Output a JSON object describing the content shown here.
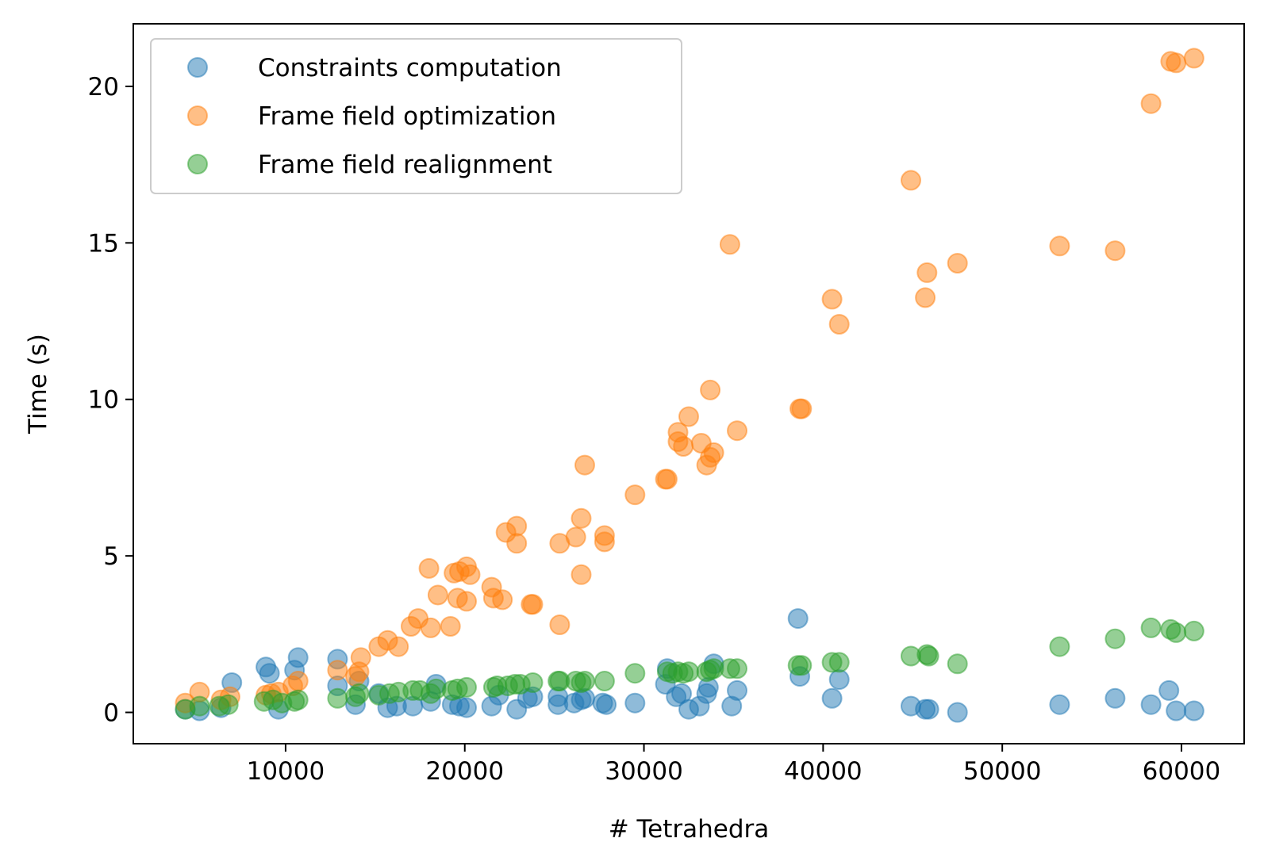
{
  "chart_data": {
    "type": "scatter",
    "title": "",
    "xlabel": "# Tetrahedra",
    "ylabel": "Time (s)",
    "xlim": [
      1500,
      63500
    ],
    "ylim": [
      -1.0,
      22.0
    ],
    "xticks": [
      10000,
      20000,
      30000,
      40000,
      50000,
      60000
    ],
    "yticks": [
      0,
      5,
      10,
      15,
      20
    ],
    "xtick_labels": [
      "10000",
      "20000",
      "30000",
      "40000",
      "50000",
      "60000"
    ],
    "ytick_labels": [
      "0",
      "5",
      "10",
      "15",
      "20"
    ],
    "grid": false,
    "legend_position": "top-left",
    "series": [
      {
        "name": "Constraints computation",
        "color": "#1f77b4",
        "points": [
          [
            4400,
            0.1
          ],
          [
            5200,
            0.05
          ],
          [
            6400,
            0.15
          ],
          [
            7000,
            0.95
          ],
          [
            8900,
            1.45
          ],
          [
            9100,
            1.25
          ],
          [
            9600,
            0.1
          ],
          [
            10500,
            1.35
          ],
          [
            10700,
            1.75
          ],
          [
            12900,
            1.7
          ],
          [
            12900,
            0.85
          ],
          [
            13900,
            0.25
          ],
          [
            14100,
            1.0
          ],
          [
            15200,
            0.6
          ],
          [
            15700,
            0.15
          ],
          [
            16200,
            0.2
          ],
          [
            17100,
            0.2
          ],
          [
            18100,
            0.35
          ],
          [
            18400,
            0.9
          ],
          [
            19300,
            0.25
          ],
          [
            19700,
            0.2
          ],
          [
            20100,
            0.15
          ],
          [
            21500,
            0.2
          ],
          [
            21900,
            0.55
          ],
          [
            22900,
            0.1
          ],
          [
            23500,
            0.45
          ],
          [
            23800,
            0.5
          ],
          [
            25200,
            0.5
          ],
          [
            25200,
            0.25
          ],
          [
            26100,
            0.3
          ],
          [
            26500,
            0.4
          ],
          [
            26700,
            0.45
          ],
          [
            27700,
            0.3
          ],
          [
            27900,
            0.25
          ],
          [
            29500,
            0.3
          ],
          [
            31200,
            0.9
          ],
          [
            31300,
            1.4
          ],
          [
            31800,
            0.5
          ],
          [
            32100,
            0.6
          ],
          [
            32500,
            0.1
          ],
          [
            33100,
            0.2
          ],
          [
            33500,
            0.6
          ],
          [
            33600,
            0.8
          ],
          [
            33900,
            1.55
          ],
          [
            34900,
            0.2
          ],
          [
            35200,
            0.7
          ],
          [
            38600,
            3.0
          ],
          [
            38700,
            1.15
          ],
          [
            40500,
            0.45
          ],
          [
            40900,
            1.05
          ],
          [
            44900,
            0.2
          ],
          [
            45700,
            0.1
          ],
          [
            45900,
            0.1
          ],
          [
            47500,
            0.0
          ],
          [
            53200,
            0.25
          ],
          [
            56300,
            0.45
          ],
          [
            58300,
            0.25
          ],
          [
            59300,
            0.7
          ],
          [
            59700,
            0.05
          ],
          [
            60700,
            0.05
          ]
        ]
      },
      {
        "name": "Frame field optimization",
        "color": "#ff7f0e",
        "points": [
          [
            4400,
            0.3
          ],
          [
            5200,
            0.65
          ],
          [
            6400,
            0.4
          ],
          [
            6900,
            0.5
          ],
          [
            8900,
            0.55
          ],
          [
            9200,
            0.6
          ],
          [
            9600,
            0.65
          ],
          [
            10400,
            0.85
          ],
          [
            10700,
            1.0
          ],
          [
            12900,
            1.35
          ],
          [
            13900,
            1.15
          ],
          [
            14100,
            1.3
          ],
          [
            14200,
            1.75
          ],
          [
            15200,
            2.1
          ],
          [
            15700,
            2.3
          ],
          [
            16300,
            2.1
          ],
          [
            17000,
            2.75
          ],
          [
            17400,
            3.0
          ],
          [
            18100,
            2.7
          ],
          [
            18000,
            4.6
          ],
          [
            18500,
            3.75
          ],
          [
            19200,
            2.75
          ],
          [
            19400,
            4.45
          ],
          [
            19600,
            3.65
          ],
          [
            19700,
            4.5
          ],
          [
            20100,
            4.65
          ],
          [
            20100,
            3.55
          ],
          [
            20300,
            4.4
          ],
          [
            21500,
            4.0
          ],
          [
            21600,
            3.65
          ],
          [
            22100,
            3.6
          ],
          [
            22300,
            5.75
          ],
          [
            22900,
            5.95
          ],
          [
            22900,
            5.4
          ],
          [
            23700,
            3.45
          ],
          [
            23800,
            3.45
          ],
          [
            25300,
            5.4
          ],
          [
            25300,
            2.8
          ],
          [
            26200,
            5.6
          ],
          [
            26500,
            6.2
          ],
          [
            26500,
            4.4
          ],
          [
            26700,
            7.9
          ],
          [
            27800,
            5.65
          ],
          [
            27800,
            5.45
          ],
          [
            29500,
            6.95
          ],
          [
            31200,
            7.45
          ],
          [
            31300,
            7.45
          ],
          [
            31900,
            8.95
          ],
          [
            31900,
            8.65
          ],
          [
            32200,
            8.5
          ],
          [
            32500,
            9.45
          ],
          [
            33200,
            8.6
          ],
          [
            33500,
            7.9
          ],
          [
            33700,
            8.15
          ],
          [
            33700,
            10.3
          ],
          [
            33900,
            8.3
          ],
          [
            34800,
            14.95
          ],
          [
            35200,
            9.0
          ],
          [
            38700,
            9.7
          ],
          [
            38800,
            9.7
          ],
          [
            40500,
            13.2
          ],
          [
            40900,
            12.4
          ],
          [
            44900,
            17.0
          ],
          [
            45700,
            13.25
          ],
          [
            45800,
            14.05
          ],
          [
            47500,
            14.35
          ],
          [
            53200,
            14.9
          ],
          [
            56300,
            14.75
          ],
          [
            58300,
            19.45
          ],
          [
            59400,
            20.8
          ],
          [
            59700,
            20.75
          ],
          [
            60700,
            20.9
          ]
        ]
      },
      {
        "name": "Frame field realignment",
        "color": "#2ca02c",
        "points": [
          [
            4400,
            0.1
          ],
          [
            5200,
            0.2
          ],
          [
            6300,
            0.2
          ],
          [
            6800,
            0.25
          ],
          [
            8800,
            0.35
          ],
          [
            9300,
            0.4
          ],
          [
            9800,
            0.3
          ],
          [
            10500,
            0.35
          ],
          [
            10700,
            0.4
          ],
          [
            12900,
            0.45
          ],
          [
            13900,
            0.5
          ],
          [
            14100,
            0.6
          ],
          [
            15200,
            0.55
          ],
          [
            15800,
            0.6
          ],
          [
            16300,
            0.65
          ],
          [
            17100,
            0.7
          ],
          [
            17500,
            0.7
          ],
          [
            18100,
            0.6
          ],
          [
            18400,
            0.75
          ],
          [
            19300,
            0.7
          ],
          [
            19600,
            0.75
          ],
          [
            20100,
            0.8
          ],
          [
            21600,
            0.8
          ],
          [
            21800,
            0.85
          ],
          [
            22400,
            0.85
          ],
          [
            22800,
            0.9
          ],
          [
            23100,
            0.9
          ],
          [
            23800,
            0.95
          ],
          [
            25200,
            1.0
          ],
          [
            25300,
            1.0
          ],
          [
            26200,
            1.0
          ],
          [
            26500,
            0.95
          ],
          [
            26700,
            1.0
          ],
          [
            27800,
            1.0
          ],
          [
            29500,
            1.25
          ],
          [
            31300,
            1.3
          ],
          [
            31600,
            1.25
          ],
          [
            31900,
            1.3
          ],
          [
            32200,
            1.25
          ],
          [
            32500,
            1.3
          ],
          [
            33500,
            1.3
          ],
          [
            33700,
            1.35
          ],
          [
            33900,
            1.4
          ],
          [
            34800,
            1.4
          ],
          [
            35200,
            1.4
          ],
          [
            38600,
            1.5
          ],
          [
            38800,
            1.5
          ],
          [
            40500,
            1.6
          ],
          [
            40900,
            1.6
          ],
          [
            44900,
            1.8
          ],
          [
            45800,
            1.85
          ],
          [
            45900,
            1.8
          ],
          [
            47500,
            1.55
          ],
          [
            53200,
            2.1
          ],
          [
            56300,
            2.35
          ],
          [
            58300,
            2.7
          ],
          [
            59400,
            2.65
          ],
          [
            59700,
            2.55
          ],
          [
            60700,
            2.6
          ]
        ]
      }
    ]
  }
}
